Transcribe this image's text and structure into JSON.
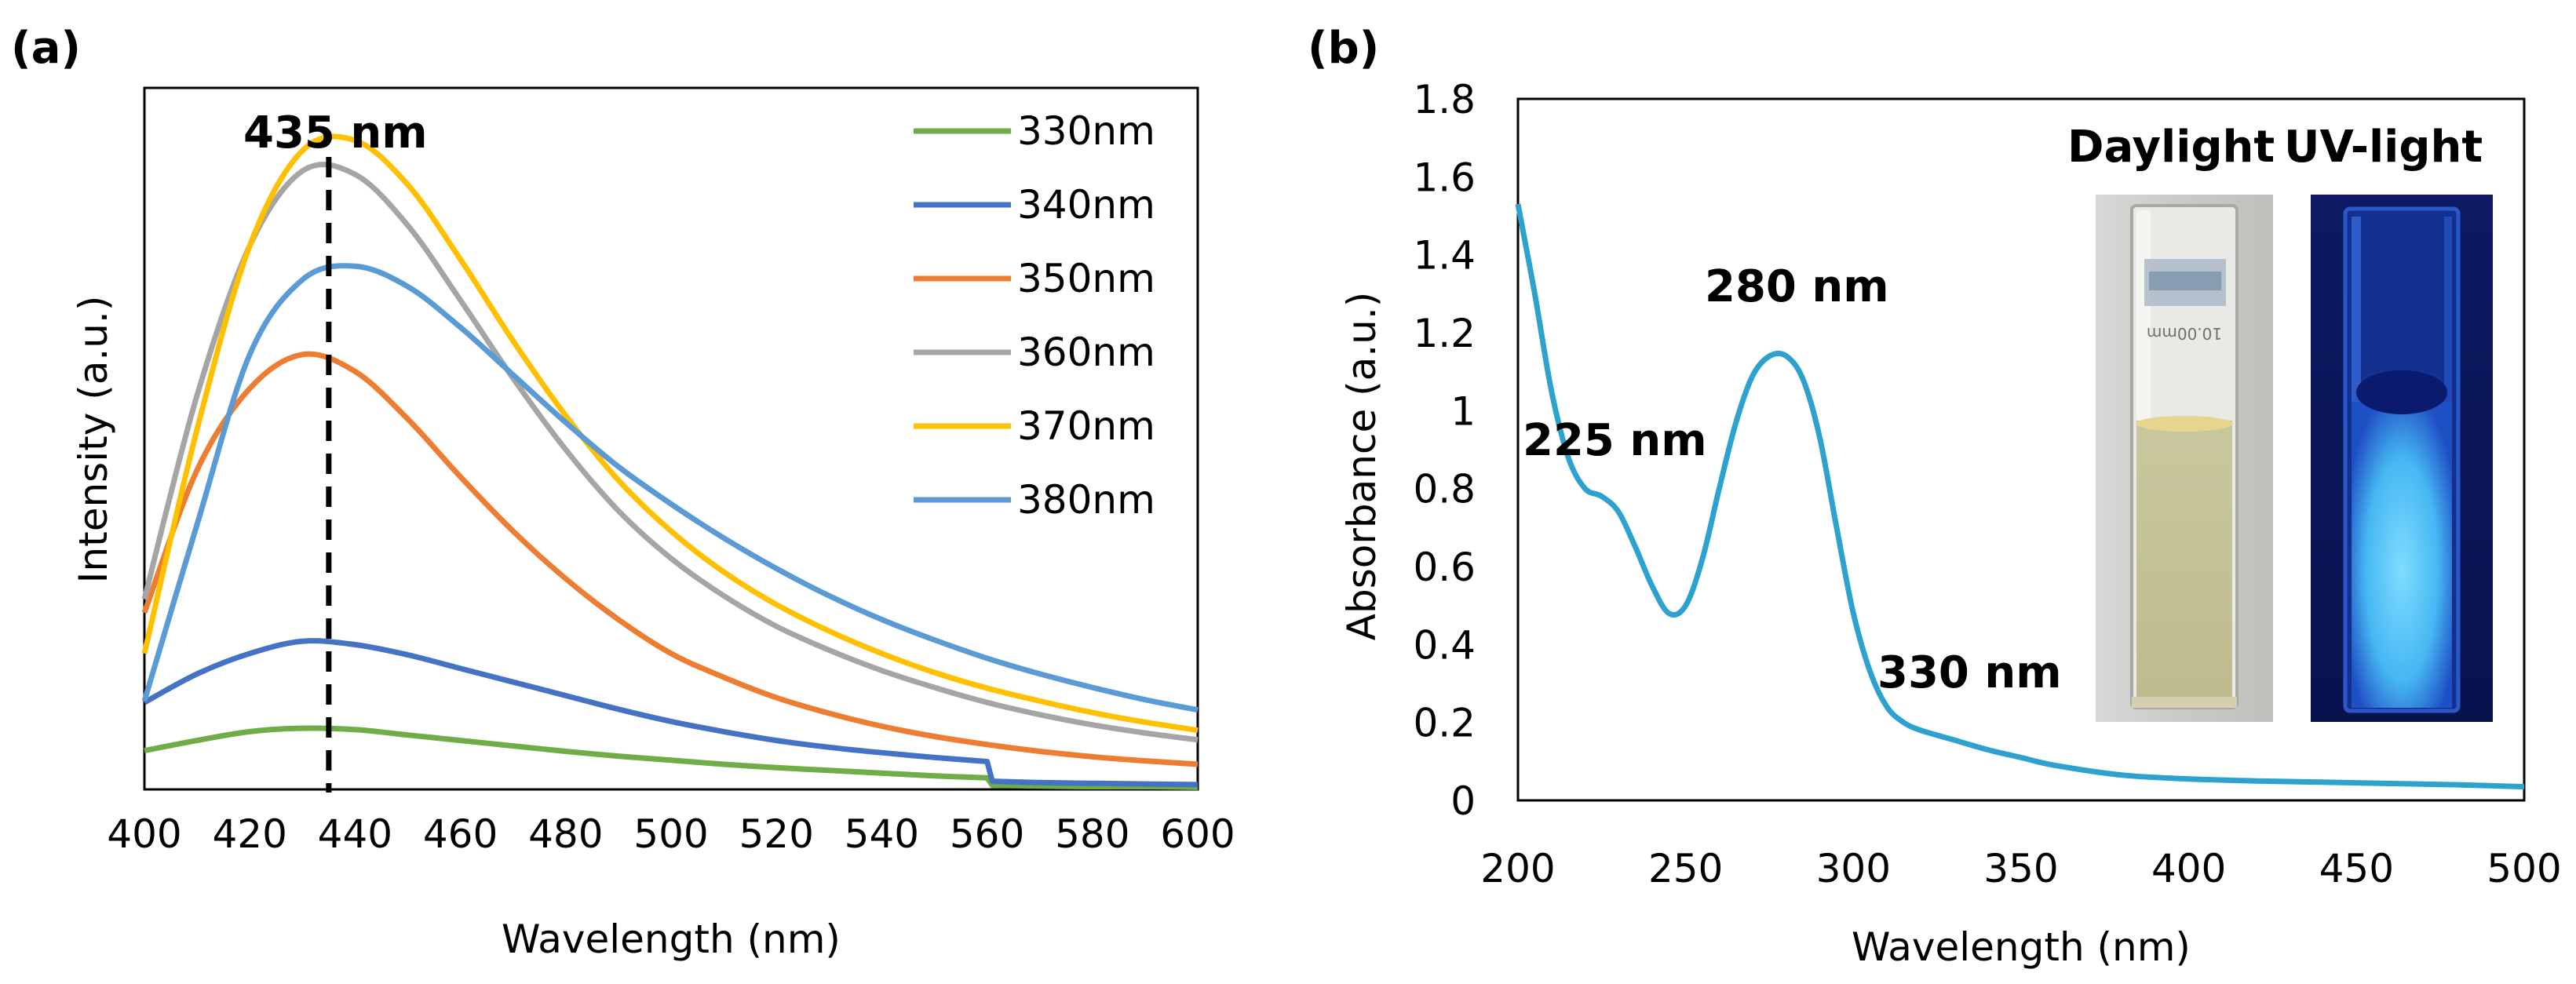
{
  "chart_data": [
    {
      "panel_label": "(a)",
      "type": "line",
      "title": "",
      "xlabel": "Wavelength (nm)",
      "ylabel": "Intensity (a.u.)",
      "xlim": [
        400,
        600
      ],
      "ylim": [
        0,
        1
      ],
      "xticks": [
        "400",
        "420",
        "440",
        "460",
        "480",
        "500",
        "520",
        "540",
        "560",
        "580",
        "600"
      ],
      "y_ticks_shown": false,
      "grid": false,
      "legend_position": "top-right",
      "annotation": {
        "text": "435 nm",
        "x": 435
      },
      "series": [
        {
          "name": "330nm",
          "color": "#70AD47",
          "x": [
            400,
            410,
            420,
            430,
            440,
            450,
            460,
            470,
            480,
            490,
            500,
            510,
            520,
            530,
            540,
            550,
            560,
            561,
            570,
            580,
            590,
            600
          ],
          "values": [
            0.057,
            0.072,
            0.085,
            0.09,
            0.088,
            0.08,
            0.072,
            0.064,
            0.056,
            0.049,
            0.043,
            0.037,
            0.032,
            0.028,
            0.024,
            0.02,
            0.017,
            0.006,
            0.005,
            0.004,
            0.004,
            0.003
          ]
        },
        {
          "name": "340nm",
          "color": "#4472C4",
          "x": [
            400,
            410,
            420,
            430,
            440,
            450,
            460,
            470,
            480,
            490,
            500,
            510,
            520,
            530,
            540,
            550,
            560,
            561,
            570,
            580,
            590,
            600
          ],
          "values": [
            0.128,
            0.17,
            0.2,
            0.218,
            0.213,
            0.198,
            0.178,
            0.158,
            0.138,
            0.118,
            0.1,
            0.085,
            0.072,
            0.062,
            0.054,
            0.047,
            0.041,
            0.012,
            0.01,
            0.009,
            0.008,
            0.007
          ]
        },
        {
          "name": "350nm",
          "color": "#ED7D31",
          "x": [
            400,
            410,
            420,
            430,
            440,
            450,
            460,
            470,
            480,
            490,
            500,
            510,
            520,
            530,
            540,
            550,
            560,
            570,
            580,
            590,
            600
          ],
          "values": [
            0.26,
            0.47,
            0.59,
            0.64,
            0.615,
            0.545,
            0.46,
            0.38,
            0.31,
            0.25,
            0.2,
            0.165,
            0.135,
            0.112,
            0.093,
            0.078,
            0.066,
            0.056,
            0.048,
            0.042,
            0.037
          ]
        },
        {
          "name": "360nm",
          "color": "#A5A5A5",
          "x": [
            400,
            410,
            420,
            430,
            440,
            450,
            460,
            470,
            480,
            490,
            500,
            510,
            520,
            530,
            540,
            550,
            560,
            570,
            580,
            590,
            600
          ],
          "values": [
            0.28,
            0.58,
            0.8,
            0.91,
            0.905,
            0.83,
            0.72,
            0.605,
            0.5,
            0.41,
            0.34,
            0.285,
            0.24,
            0.205,
            0.175,
            0.15,
            0.128,
            0.11,
            0.095,
            0.083,
            0.073
          ]
        },
        {
          "name": "370nm",
          "color": "#FFC000",
          "x": [
            400,
            410,
            420,
            430,
            440,
            450,
            460,
            470,
            480,
            490,
            500,
            510,
            520,
            530,
            540,
            550,
            560,
            570,
            580,
            590,
            600
          ],
          "values": [
            0.2,
            0.53,
            0.8,
            0.94,
            0.955,
            0.89,
            0.78,
            0.66,
            0.55,
            0.455,
            0.38,
            0.32,
            0.272,
            0.233,
            0.2,
            0.172,
            0.149,
            0.13,
            0.113,
            0.099,
            0.087
          ]
        },
        {
          "name": "380nm",
          "color": "#5B9BD5",
          "x": [
            400,
            410,
            420,
            430,
            440,
            450,
            460,
            470,
            480,
            490,
            500,
            510,
            520,
            530,
            540,
            550,
            560,
            570,
            580,
            590,
            600
          ],
          "values": [
            0.13,
            0.39,
            0.64,
            0.75,
            0.77,
            0.74,
            0.68,
            0.61,
            0.54,
            0.475,
            0.42,
            0.37,
            0.325,
            0.285,
            0.25,
            0.22,
            0.193,
            0.17,
            0.15,
            0.132,
            0.117
          ]
        }
      ]
    },
    {
      "panel_label": "(b)",
      "type": "line",
      "title": "",
      "xlabel": "Wavelength (nm)",
      "ylabel": "Absorbance (a.u.)",
      "xlim": [
        200,
        500
      ],
      "ylim": [
        0,
        1.8
      ],
      "xticks": [
        "200",
        "250",
        "300",
        "350",
        "400",
        "450",
        "500"
      ],
      "yticks": [
        "0",
        "0.2",
        "0.4",
        "0.6",
        "0.8",
        "1",
        "1.2",
        "1.4",
        "1.6",
        "1.8"
      ],
      "grid": false,
      "annotations": [
        {
          "text": "225 nm",
          "x": 225
        },
        {
          "text": "280 nm",
          "x": 280
        },
        {
          "text": "330 nm",
          "x": 330
        }
      ],
      "series": [
        {
          "name": "Absorbance",
          "color": "#2EA2CF",
          "x": [
            200,
            205,
            210,
            215,
            220,
            225,
            230,
            235,
            240,
            245,
            250,
            255,
            260,
            265,
            270,
            275,
            280,
            285,
            290,
            295,
            300,
            305,
            310,
            315,
            320,
            330,
            340,
            350,
            360,
            380,
            400,
            420,
            450,
            480,
            500
          ],
          "values": [
            1.53,
            1.3,
            1.05,
            0.88,
            0.8,
            0.78,
            0.74,
            0.65,
            0.55,
            0.48,
            0.5,
            0.62,
            0.8,
            0.97,
            1.09,
            1.14,
            1.14,
            1.08,
            0.93,
            0.7,
            0.48,
            0.33,
            0.24,
            0.2,
            0.18,
            0.155,
            0.13,
            0.11,
            0.09,
            0.065,
            0.055,
            0.05,
            0.045,
            0.04,
            0.035
          ]
        }
      ],
      "inset": {
        "labels": [
          "Daylight",
          "UV-light"
        ],
        "cuvette_text": "10.00mm"
      }
    }
  ]
}
